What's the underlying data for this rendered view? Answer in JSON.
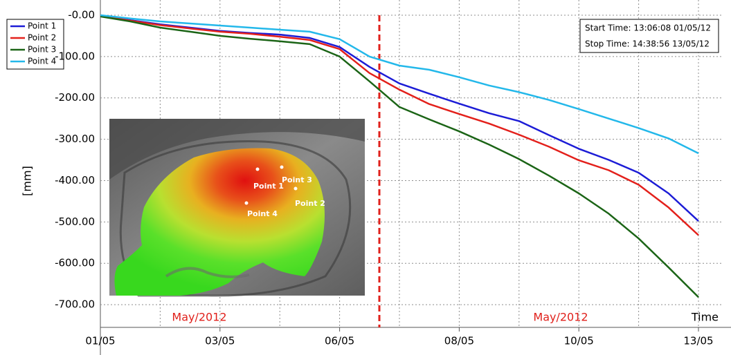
{
  "chart_data": {
    "type": "line",
    "y_label": "[mm]",
    "x_label": "Time",
    "categories": [
      "01/05",
      null,
      null,
      null,
      "03/05",
      null,
      null,
      null,
      "06/05",
      null,
      null,
      null,
      "08/05",
      null,
      null,
      null,
      "10/05",
      null,
      null,
      null,
      "13/05"
    ],
    "series": [
      {
        "name": "Point 1",
        "color": "#1c1cd6",
        "values": [
          -2,
          -12,
          -22,
          -30,
          -38,
          -43,
          -47,
          -55,
          -77,
          -125,
          -165,
          -190,
          -214,
          -237,
          -256,
          -290,
          -323,
          -350,
          -381,
          -431,
          -498
        ]
      },
      {
        "name": "Point 2",
        "color": "#e3201b",
        "values": [
          -2,
          -13,
          -24,
          -32,
          -40,
          -45,
          -52,
          -60,
          -82,
          -140,
          -180,
          -215,
          -239,
          -262,
          -289,
          -318,
          -351,
          -375,
          -410,
          -465,
          -532
        ]
      },
      {
        "name": "Point 3",
        "color": "#1b6416",
        "values": [
          -3,
          -15,
          -30,
          -40,
          -50,
          -57,
          -63,
          -70,
          -100,
          -160,
          -222,
          -252,
          -281,
          -313,
          -348,
          -388,
          -431,
          -480,
          -540,
          -610,
          -682
        ]
      },
      {
        "name": "Point 4",
        "color": "#23b8ea",
        "values": [
          0,
          -8,
          -15,
          -20,
          -25,
          -30,
          -35,
          -40,
          -58,
          -100,
          -122,
          -132,
          -150,
          -170,
          -186,
          -205,
          -227,
          -250,
          -273,
          -298,
          -334
        ]
      }
    ],
    "ylim": [
      -755,
      0
    ],
    "yticks": [
      {
        "value": 0,
        "label": "-0.00"
      },
      {
        "value": -100,
        "label": "-100.00"
      },
      {
        "value": -200,
        "label": "-200.00"
      },
      {
        "value": -300,
        "label": "-300.00"
      },
      {
        "value": -400,
        "label": "-400.00"
      },
      {
        "value": -500,
        "label": "-500.00"
      },
      {
        "value": -600,
        "label": "-600.00"
      },
      {
        "value": -700,
        "label": "-700.00"
      }
    ],
    "grid": true,
    "legend": "top-left",
    "annotations": [
      "May/2012",
      "May/2012"
    ],
    "info_box": [
      "Start Time: 13:06:08 01/05/12",
      "Stop Time: 14:38:56 13/05/12"
    ],
    "inset": {
      "labels": [
        "Point 1",
        "Point 2",
        "Point 3",
        "Point 4"
      ]
    }
  }
}
